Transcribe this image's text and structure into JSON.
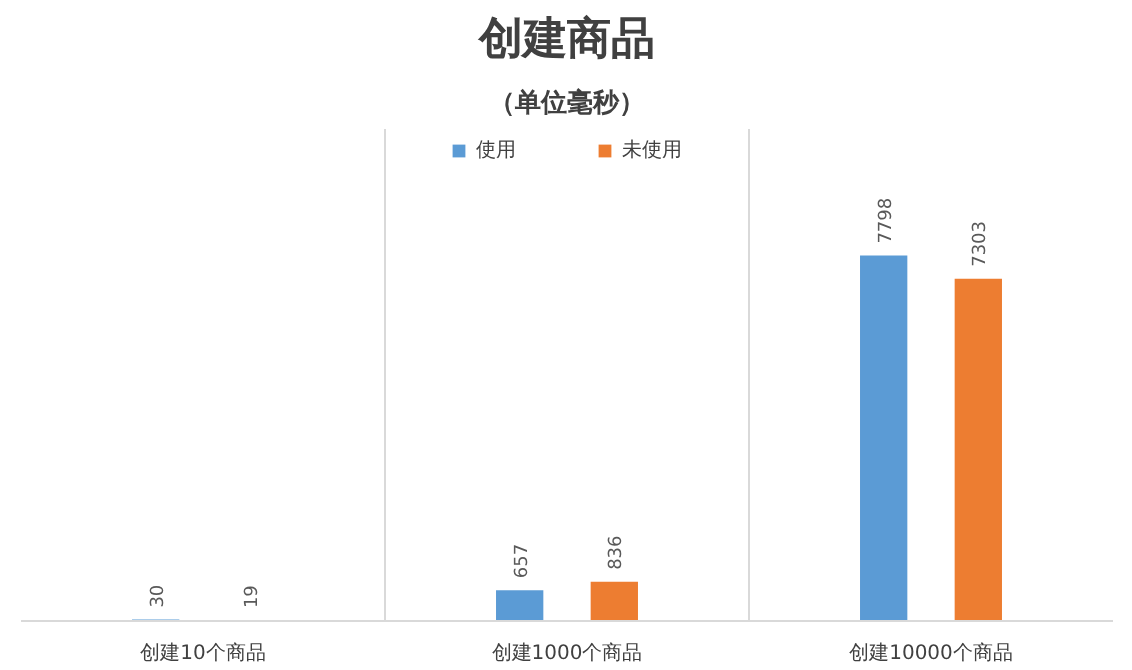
{
  "chart_data": {
    "type": "bar",
    "title": "创建商品",
    "subtitle": "（单位毫秒）",
    "categories": [
      "创建10个商品",
      "创建1000个商品",
      "创建10000个商品"
    ],
    "series": [
      {
        "name": "使用",
        "color": "#5b9bd5",
        "values": [
          30,
          657,
          7798
        ]
      },
      {
        "name": "未使用",
        "color": "#ed7d31",
        "values": [
          19,
          836,
          7303
        ]
      }
    ],
    "ylim": [
      0,
      10500
    ],
    "tick_labels": "x",
    "data_labels": true,
    "grid": "x",
    "legend": "top"
  }
}
